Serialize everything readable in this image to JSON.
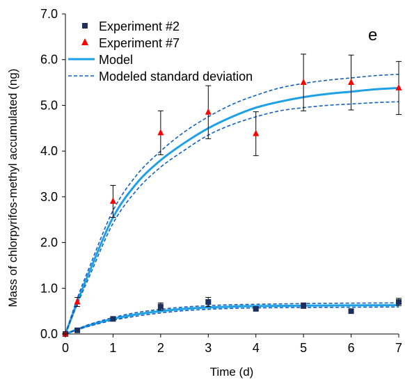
{
  "chart_data": {
    "type": "scatter",
    "panel_label": "e",
    "xlabel": "Time (d)",
    "ylabel": "Mass of chlorpyrifos-methyl accumulated (ng)",
    "xlim": [
      0,
      7
    ],
    "ylim": [
      0,
      7
    ],
    "x_ticks": [
      "0",
      "1",
      "2",
      "3",
      "4",
      "5",
      "6",
      "7"
    ],
    "y_ticks": [
      "0.0",
      "1.0",
      "2.0",
      "3.0",
      "4.0",
      "5.0",
      "6.0",
      "7.0"
    ],
    "grid": false,
    "legend_position": "top-left",
    "series": [
      {
        "name": "Experiment #2",
        "kind": "points",
        "marker": "square",
        "color": "#1f2f5c",
        "x": [
          0,
          0.25,
          1,
          2,
          3,
          4,
          5,
          6,
          7
        ],
        "y": [
          0.0,
          0.08,
          0.33,
          0.6,
          0.7,
          0.55,
          0.62,
          0.5,
          0.7
        ],
        "err": [
          0.0,
          0.02,
          0.04,
          0.08,
          0.1,
          0.04,
          0.06,
          0.04,
          0.08
        ]
      },
      {
        "name": "Experiment #7",
        "kind": "points",
        "marker": "triangle",
        "color": "#ff0000",
        "x": [
          0,
          0.25,
          1,
          2,
          3,
          4,
          5,
          6,
          7
        ],
        "y": [
          0.0,
          0.7,
          2.9,
          4.4,
          4.85,
          4.38,
          5.5,
          5.5,
          5.38
        ],
        "err": [
          0.0,
          0.1,
          0.35,
          0.48,
          0.58,
          0.48,
          0.62,
          0.6,
          0.58
        ]
      },
      {
        "name": "Model",
        "kind": "line",
        "style": "solid",
        "color": "#1ea0e6",
        "x": [
          0,
          0.25,
          0.5,
          1,
          1.5,
          2,
          2.5,
          3,
          3.5,
          4,
          4.5,
          5,
          5.5,
          6,
          6.5,
          7
        ],
        "y": [
          0.0,
          0.7,
          1.35,
          2.55,
          3.3,
          3.8,
          4.18,
          4.5,
          4.75,
          4.95,
          5.08,
          5.18,
          5.25,
          5.3,
          5.35,
          5.38
        ]
      },
      {
        "name": "Model",
        "kind": "line",
        "style": "solid",
        "color": "#1ea0e6",
        "x": [
          0,
          0.25,
          0.5,
          1,
          1.5,
          2,
          2.5,
          3,
          3.5,
          4,
          5,
          6,
          7
        ],
        "y": [
          0.0,
          0.1,
          0.19,
          0.33,
          0.43,
          0.5,
          0.55,
          0.58,
          0.6,
          0.61,
          0.62,
          0.625,
          0.63
        ]
      },
      {
        "name": "Modeled standard deviation",
        "kind": "line",
        "style": "dashed",
        "color": "#1060c0",
        "x": [
          0,
          0.25,
          0.5,
          1,
          1.5,
          2,
          2.5,
          3,
          3.5,
          4,
          4.5,
          5,
          5.5,
          6,
          6.5,
          7
        ],
        "y": [
          0.0,
          0.78,
          1.45,
          2.7,
          3.48,
          4.0,
          4.42,
          4.75,
          5.02,
          5.22,
          5.38,
          5.48,
          5.55,
          5.6,
          5.65,
          5.68
        ]
      },
      {
        "name": "Modeled standard deviation",
        "kind": "line",
        "style": "dashed",
        "color": "#1060c0",
        "x": [
          0,
          0.25,
          0.5,
          1,
          1.5,
          2,
          2.5,
          3,
          3.5,
          4,
          4.5,
          5,
          5.5,
          6,
          6.5,
          7
        ],
        "y": [
          0.0,
          0.65,
          1.25,
          2.42,
          3.15,
          3.65,
          4.02,
          4.35,
          4.58,
          4.75,
          4.88,
          4.95,
          5.0,
          5.03,
          5.06,
          5.08
        ]
      },
      {
        "name": "Modeled standard deviation",
        "kind": "line",
        "style": "dashed",
        "color": "#1060c0",
        "x": [
          0,
          0.25,
          0.5,
          1,
          1.5,
          2,
          2.5,
          3,
          3.5,
          4,
          5,
          6,
          7
        ],
        "y": [
          0.0,
          0.11,
          0.21,
          0.36,
          0.47,
          0.54,
          0.59,
          0.62,
          0.64,
          0.65,
          0.665,
          0.675,
          0.68
        ]
      },
      {
        "name": "Modeled standard deviation",
        "kind": "line",
        "style": "dashed",
        "color": "#1060c0",
        "x": [
          0,
          0.25,
          0.5,
          1,
          1.5,
          2,
          2.5,
          3,
          3.5,
          4,
          5,
          6,
          7
        ],
        "y": [
          0.0,
          0.09,
          0.17,
          0.3,
          0.39,
          0.46,
          0.51,
          0.54,
          0.56,
          0.57,
          0.58,
          0.585,
          0.59
        ]
      }
    ],
    "legend": [
      {
        "label": "Experiment #2",
        "symbol": "square",
        "color": "#1f2f5c"
      },
      {
        "label": "Experiment #7",
        "symbol": "triangle",
        "color": "#ff0000"
      },
      {
        "label": "Model",
        "symbol": "solid-line",
        "color": "#1ea0e6"
      },
      {
        "label": "Modeled standard deviation",
        "symbol": "dashed-line",
        "color": "#1060c0"
      }
    ]
  }
}
